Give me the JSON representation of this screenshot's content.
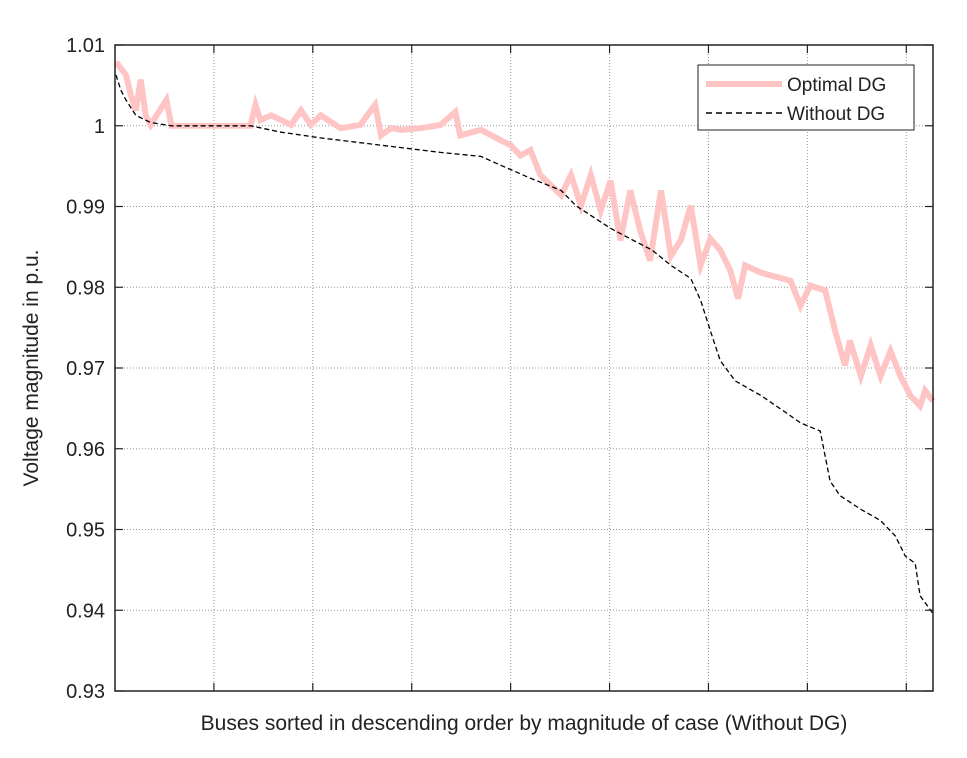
{
  "chart_data": {
    "type": "line",
    "title": "",
    "xlabel": "Buses sorted in descending order by magnitude of case (Without DG)",
    "ylabel": "Voltage magnitude in p.u.",
    "xlim": [
      0,
      827
    ],
    "ylim": [
      0.93,
      1.01
    ],
    "xticks": [
      100,
      200,
      300,
      400,
      500,
      600,
      700,
      800
    ],
    "yticks": [
      0.93,
      0.94,
      0.95,
      0.96,
      0.97,
      0.98,
      0.99,
      1,
      1.01
    ],
    "ytick_labels": [
      "0.93",
      "0.94",
      "0.95",
      "0.96",
      "0.97",
      "0.98",
      "0.99",
      "1",
      "1.01"
    ],
    "grid": true,
    "legend_position": "top-right",
    "series": [
      {
        "name": "Optimal DG",
        "color": "#ffc4c4",
        "style": "solid-thick",
        "x": [
          1,
          11,
          16,
          21,
          26,
          31,
          36,
          52,
          57,
          137,
          142,
          147,
          158,
          178,
          188,
          198,
          208,
          228,
          248,
          263,
          269,
          279,
          289,
          309,
          329,
          344,
          349,
          370,
          390,
          400,
          410,
          420,
          430,
          451,
          461,
          471,
          481,
          491,
          501,
          511,
          521,
          531,
          541,
          552,
          562,
          572,
          582,
          592,
          602,
          612,
          622,
          630,
          637,
          653,
          683,
          693,
          703,
          718,
          728,
          738,
          743,
          754,
          764,
          774,
          784,
          794,
          804,
          814,
          819,
          827
        ],
        "y": [
          1.0079,
          1.0063,
          1.0038,
          1.0019,
          1.0057,
          1.0013,
          1.0001,
          1.0032,
          1.0,
          1.0,
          1.0026,
          1.0007,
          1.0013,
          1.0001,
          1.0019,
          1.0001,
          1.0013,
          0.9997,
          1.0001,
          1.0026,
          0.9988,
          0.9997,
          0.9995,
          0.9997,
          1.0001,
          1.0017,
          0.9988,
          0.9995,
          0.9982,
          0.9976,
          0.9963,
          0.997,
          0.9939,
          0.9914,
          0.9939,
          0.9901,
          0.9939,
          0.9895,
          0.9932,
          0.9858,
          0.992,
          0.987,
          0.9833,
          0.992,
          0.9839,
          0.9858,
          0.9901,
          0.9827,
          0.986,
          0.9846,
          0.9821,
          0.9786,
          0.9827,
          0.9818,
          0.9808,
          0.9777,
          0.9802,
          0.9796,
          0.9746,
          0.9703,
          0.9734,
          0.969,
          0.9728,
          0.969,
          0.9721,
          0.969,
          0.9666,
          0.9653,
          0.9672,
          0.9659
        ]
      },
      {
        "name": "Without DG",
        "color": "#000000",
        "style": "dashed",
        "x": [
          1,
          6,
          11,
          21,
          36,
          57,
          137,
          168,
          208,
          289,
          329,
          370,
          390,
          420,
          451,
          466,
          481,
          501,
          521,
          543,
          562,
          582,
          592,
          602,
          612,
          627,
          653,
          678,
          693,
          713,
          723,
          733,
          754,
          774,
          789,
          799,
          809,
          814,
          827
        ],
        "y": [
          1.0063,
          1.0044,
          1.0032,
          1.0013,
          1.0004,
          1.0,
          1.0,
          0.9992,
          0.9985,
          0.9973,
          0.9967,
          0.9962,
          0.9951,
          0.9935,
          0.992,
          0.9901,
          0.9889,
          0.9873,
          0.986,
          0.9846,
          0.9827,
          0.9811,
          0.9784,
          0.9746,
          0.9709,
          0.9684,
          0.9666,
          0.9645,
          0.9632,
          0.9622,
          0.956,
          0.9542,
          0.9525,
          0.9511,
          0.9492,
          0.9467,
          0.9458,
          0.9418,
          0.9396
        ]
      }
    ]
  }
}
